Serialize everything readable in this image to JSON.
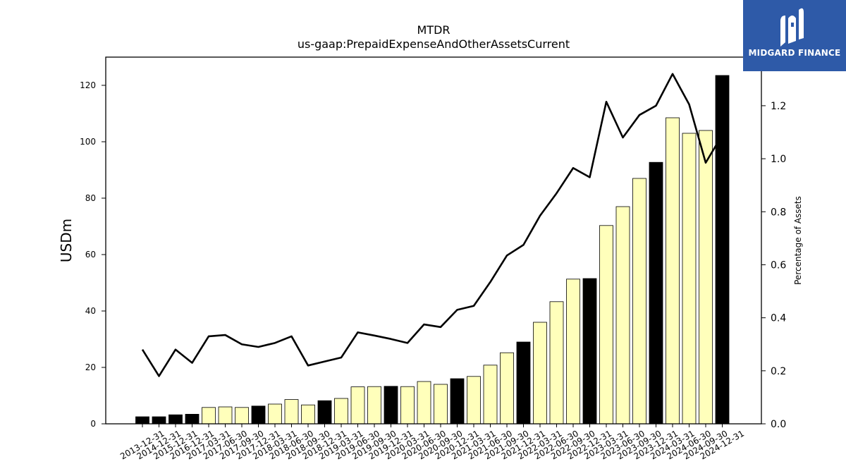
{
  "brand": {
    "name": "MIDGARD FINANCE",
    "color": "#2e5aa8"
  },
  "chart_data": {
    "type": "bar",
    "title": "MTDR",
    "subtitle": "us-gaap:PrepaidExpenseAndOtherAssetsCurrent",
    "ylabel": "USDm",
    "ylabel_right": "Percentage of Assets",
    "ylim": [
      0,
      130
    ],
    "ylim_right": [
      0,
      1.3833
    ],
    "yticks": [
      0,
      20,
      40,
      60,
      80,
      100,
      120
    ],
    "yticks_right": [
      0.0,
      0.2,
      0.4,
      0.6,
      0.8,
      1.0,
      1.2
    ],
    "categories": [
      "2013-12-31",
      "2014-12-31",
      "2015-12-31",
      "2016-12-31",
      "2017-03-31",
      "2017-06-30",
      "2017-09-30",
      "2017-12-31",
      "2018-03-31",
      "2018-06-30",
      "2018-09-30",
      "2018-12-31",
      "2019-03-31",
      "2019-06-30",
      "2019-09-30",
      "2019-12-31",
      "2020-03-31",
      "2020-06-30",
      "2020-09-30",
      "2020-12-31",
      "2021-03-31",
      "2021-06-30",
      "2021-09-30",
      "2021-12-31",
      "2022-03-31",
      "2022-06-30",
      "2022-09-30",
      "2022-12-31",
      "2023-03-31",
      "2023-06-30",
      "2023-09-30",
      "2023-12-31",
      "2024-03-31",
      "2024-06-30",
      "2024-09-30",
      "2024-12-31"
    ],
    "series": [
      {
        "kind": "bar",
        "values": [
          2.5,
          2.5,
          3.2,
          3.4,
          5.8,
          6.0,
          5.8,
          6.3,
          7.0,
          8.6,
          6.7,
          8.2,
          9.0,
          13.1,
          13.2,
          13.3,
          13.2,
          15.0,
          14.0,
          16.0,
          16.8,
          20.8,
          25.2,
          29.0,
          36.0,
          43.3,
          51.3,
          51.5,
          70.3,
          77.0,
          87.0,
          92.7,
          108.5,
          103.0,
          104.0,
          123.5
        ],
        "annual_flags": [
          true,
          true,
          true,
          true,
          false,
          false,
          false,
          true,
          false,
          false,
          false,
          true,
          false,
          false,
          false,
          true,
          false,
          false,
          false,
          true,
          false,
          false,
          false,
          true,
          false,
          false,
          false,
          true,
          false,
          false,
          false,
          true,
          false,
          false,
          false,
          true
        ]
      },
      {
        "kind": "line",
        "axis": "right",
        "values": [
          0.28,
          0.18,
          0.28,
          0.23,
          0.33,
          0.335,
          0.3,
          0.29,
          0.305,
          0.33,
          0.22,
          0.235,
          0.25,
          0.345,
          0.333,
          0.32,
          0.305,
          0.375,
          0.365,
          0.43,
          0.445,
          0.535,
          0.635,
          0.675,
          0.785,
          0.87,
          0.965,
          0.93,
          1.215,
          1.08,
          1.165,
          1.2,
          1.32,
          1.205,
          0.985,
          1.09
        ]
      }
    ],
    "colors": {
      "annual_bar": "#000000",
      "quarter_bar": "#ffffbb",
      "bar_edge": "#000000",
      "line": "#000000"
    }
  }
}
